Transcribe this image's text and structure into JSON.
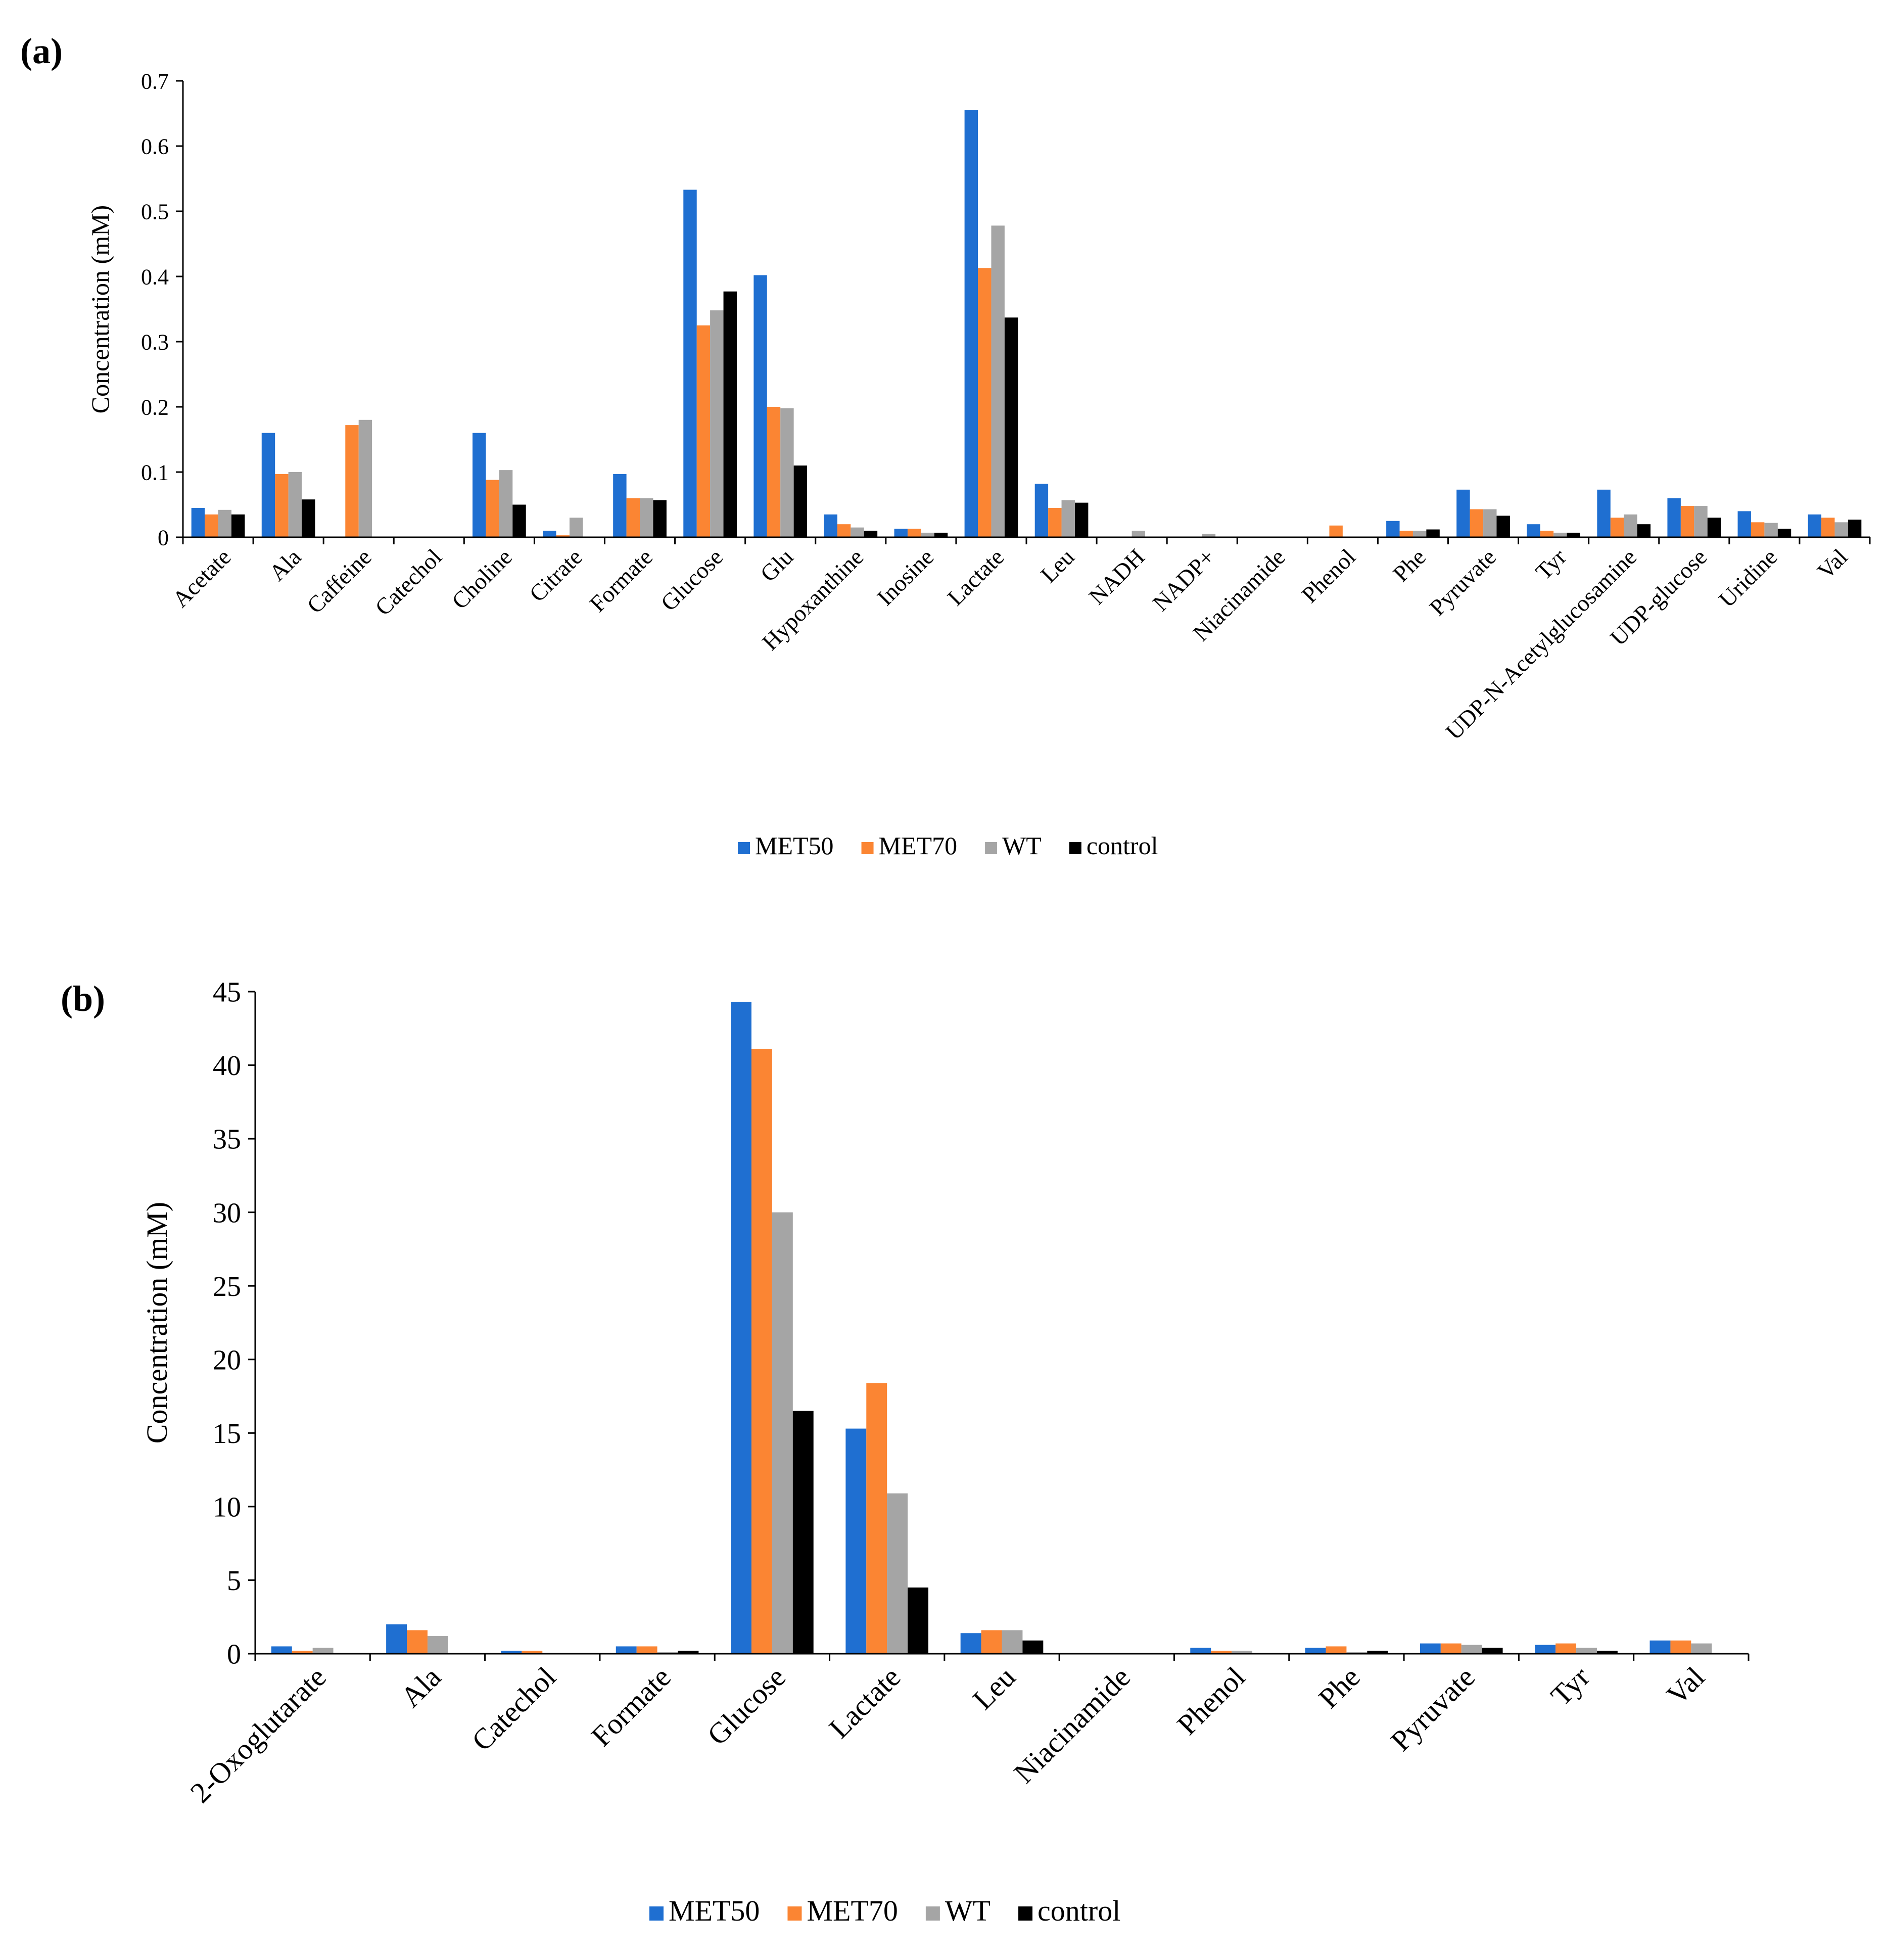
{
  "chart_data": [
    {
      "type": "bar",
      "panel": "(a)",
      "ylabel": "Concentration (mM)",
      "xlabel": "",
      "ylim": [
        0,
        0.7
      ],
      "yticks": [
        "0",
        "0.1",
        "0.2",
        "0.3",
        "0.4",
        "0.5",
        "0.6",
        "0.7"
      ],
      "legend_position": "bottom",
      "categories": [
        "Acetate",
        "Ala",
        "Caffeine",
        "Catechol",
        "Choline",
        "Citrate",
        "Formate",
        "Glucose",
        "Glu",
        "Hypoxanthine",
        "Inosine",
        "Lactate",
        "Leu",
        "NADH",
        "NADP+",
        "Niacinamide",
        "Phenol",
        "Phe",
        "Pyruvate",
        "Tyr",
        "UDP-N-Acetylglucosamine",
        "UDP-glucose",
        "Uridine",
        "Val"
      ],
      "series": [
        {
          "name": "MET50",
          "color": "#1f6fd1",
          "values": [
            0.045,
            0.16,
            0,
            0,
            0.16,
            0.01,
            0.097,
            0.533,
            0.402,
            0.035,
            0.013,
            0.655,
            0.082,
            0,
            0,
            0,
            0,
            0.025,
            0.073,
            0.02,
            0.073,
            0.06,
            0.04,
            0.035
          ]
        },
        {
          "name": "MET70",
          "color": "#fb8533",
          "values": [
            0.035,
            0.097,
            0.172,
            0,
            0.088,
            0.003,
            0.06,
            0.325,
            0.2,
            0.02,
            0.013,
            0.413,
            0.045,
            0,
            0,
            0,
            0.018,
            0.01,
            0.043,
            0.01,
            0.03,
            0.048,
            0.023,
            0.03
          ]
        },
        {
          "name": "WT",
          "color": "#a5a5a5",
          "values": [
            0.042,
            0.1,
            0.18,
            0,
            0.103,
            0.03,
            0.06,
            0.348,
            0.198,
            0.015,
            0.007,
            0.478,
            0.057,
            0.01,
            0.005,
            0,
            0,
            0.01,
            0.043,
            0.007,
            0.035,
            0.048,
            0.022,
            0.023
          ]
        },
        {
          "name": "control",
          "color": "#000000",
          "values": [
            0.035,
            0.058,
            0,
            0,
            0.05,
            0,
            0.057,
            0.377,
            0.11,
            0.01,
            0.007,
            0.337,
            0.053,
            0,
            0,
            0,
            0,
            0.012,
            0.033,
            0.007,
            0.02,
            0.03,
            0.013,
            0.027
          ]
        }
      ]
    },
    {
      "type": "bar",
      "panel": "(b)",
      "ylabel": "Concentration (mM)",
      "xlabel": "",
      "ylim": [
        0,
        45
      ],
      "yticks": [
        "0",
        "5",
        "10",
        "15",
        "20",
        "25",
        "30",
        "35",
        "40",
        "45"
      ],
      "legend_position": "bottom",
      "categories": [
        "2-Oxoglutarate",
        "Ala",
        "Catechol",
        "Formate",
        "Glucose",
        "Lactate",
        "Leu",
        "Niacinamide",
        "Phenol",
        "Phe",
        "Pyruvate",
        "Tyr",
        "Val"
      ],
      "series": [
        {
          "name": "MET50",
          "color": "#1f6fd1",
          "values": [
            0.5,
            2.0,
            0.2,
            0.5,
            44.3,
            15.3,
            1.4,
            0,
            0.4,
            0.4,
            0.7,
            0.6,
            0.9
          ]
        },
        {
          "name": "MET70",
          "color": "#fb8533",
          "values": [
            0.2,
            1.6,
            0.2,
            0.5,
            41.1,
            18.4,
            1.6,
            0,
            0.2,
            0.5,
            0.7,
            0.7,
            0.9
          ]
        },
        {
          "name": "WT",
          "color": "#a5a5a5",
          "values": [
            0.4,
            1.2,
            0,
            0.1,
            30.0,
            10.9,
            1.6,
            0,
            0.2,
            0.1,
            0.6,
            0.4,
            0.7
          ]
        },
        {
          "name": "control",
          "color": "#000000",
          "values": [
            0,
            0,
            0,
            0.2,
            16.5,
            4.5,
            0.9,
            0,
            0,
            0.2,
            0.4,
            0.2,
            0
          ]
        }
      ]
    }
  ]
}
